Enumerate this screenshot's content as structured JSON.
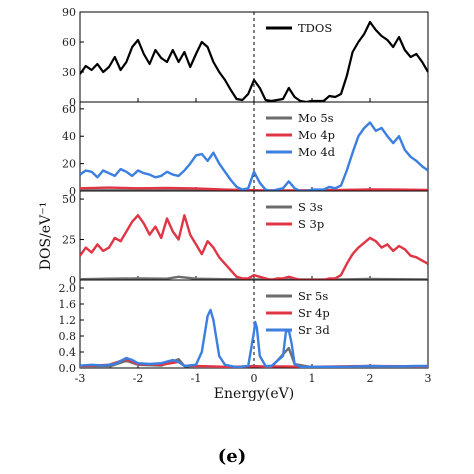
{
  "chart_data": {
    "type": "line",
    "xlabel": "Energy(eV)",
    "ylabel": "DOS/eV⁻¹",
    "xlim": [
      -3,
      3
    ],
    "xticks": [
      "-3",
      "-2",
      "-1",
      "0",
      "1",
      "2",
      "3"
    ],
    "fermi_line": "dashed vertical line at Energy = 0",
    "caption": "(e)",
    "panels": [
      {
        "ylim": [
          0,
          90
        ],
        "yticks": [
          "0",
          "30",
          "60",
          "90"
        ],
        "legend_position": "top-right",
        "series": [
          {
            "name": "TDOS",
            "color": "#000000",
            "x": [
              -3.0,
              -2.9,
              -2.8,
              -2.7,
              -2.6,
              -2.5,
              -2.4,
              -2.3,
              -2.2,
              -2.1,
              -2.0,
              -1.9,
              -1.8,
              -1.7,
              -1.6,
              -1.5,
              -1.4,
              -1.3,
              -1.2,
              -1.1,
              -1.0,
              -0.9,
              -0.8,
              -0.7,
              -0.6,
              -0.5,
              -0.4,
              -0.3,
              -0.2,
              -0.1,
              0.0,
              0.1,
              0.2,
              0.3,
              0.4,
              0.5,
              0.6,
              0.7,
              0.8,
              0.9,
              1.0,
              1.1,
              1.2,
              1.3,
              1.4,
              1.5,
              1.6,
              1.7,
              1.8,
              1.9,
              2.0,
              2.1,
              2.2,
              2.3,
              2.4,
              2.5,
              2.6,
              2.7,
              2.8,
              2.9,
              3.0
            ],
            "values": [
              28,
              36,
              32,
              38,
              30,
              35,
              45,
              32,
              40,
              55,
              62,
              48,
              38,
              52,
              44,
              40,
              52,
              40,
              50,
              35,
              48,
              60,
              55,
              40,
              30,
              22,
              12,
              3,
              2,
              8,
              22,
              14,
              2,
              1,
              2,
              3,
              14,
              5,
              1,
              0,
              1,
              1,
              1,
              6,
              5,
              8,
              26,
              50,
              60,
              68,
              80,
              72,
              66,
              62,
              55,
              65,
              52,
              45,
              48,
              40,
              30
            ]
          }
        ]
      },
      {
        "ylim": [
          0,
          65
        ],
        "yticks": [
          "0",
          "20",
          "40",
          "60"
        ],
        "legend_position": "top-right",
        "series": [
          {
            "name": "Mo 5s",
            "color": "#6d6d6d",
            "x": [
              -3.0,
              -2.0,
              -1.0,
              0.0,
              1.0,
              2.0,
              3.0
            ],
            "values": [
              0.5,
              0.5,
              0.4,
              0.3,
              0.2,
              0.6,
              0.5
            ]
          },
          {
            "name": "Mo 4p",
            "color": "#e03545",
            "x": [
              -3.0,
              -2.5,
              -2.0,
              -1.5,
              -1.0,
              -0.5,
              0.0,
              0.5,
              1.0,
              1.5,
              2.0,
              2.5,
              3.0
            ],
            "values": [
              2,
              2.5,
              2,
              2.2,
              1.8,
              1,
              0.5,
              0.4,
              0.5,
              0.7,
              1.2,
              1,
              0.8
            ]
          },
          {
            "name": "Mo 4d",
            "color": "#3b7fe0",
            "x": [
              -3.0,
              -2.9,
              -2.8,
              -2.7,
              -2.6,
              -2.5,
              -2.4,
              -2.3,
              -2.2,
              -2.1,
              -2.0,
              -1.9,
              -1.8,
              -1.7,
              -1.6,
              -1.5,
              -1.4,
              -1.3,
              -1.2,
              -1.1,
              -1.0,
              -0.9,
              -0.8,
              -0.7,
              -0.6,
              -0.5,
              -0.4,
              -0.3,
              -0.2,
              -0.1,
              0.0,
              0.1,
              0.2,
              0.3,
              0.4,
              0.5,
              0.6,
              0.7,
              0.8,
              0.9,
              1.0,
              1.1,
              1.2,
              1.3,
              1.4,
              1.5,
              1.6,
              1.7,
              1.8,
              1.9,
              2.0,
              2.1,
              2.2,
              2.3,
              2.4,
              2.5,
              2.6,
              2.7,
              2.8,
              2.9,
              3.0
            ],
            "values": [
              12,
              15,
              14,
              10,
              15,
              13,
              11,
              16,
              14,
              11,
              15,
              13,
              12,
              10,
              11,
              14,
              12,
              11,
              15,
              20,
              26,
              27,
              22,
              28,
              20,
              14,
              8,
              3,
              1,
              2,
              14,
              6,
              1,
              0,
              1,
              2,
              7,
              2,
              0,
              0,
              1,
              1,
              1,
              3,
              2,
              4,
              15,
              28,
              40,
              46,
              50,
              44,
              46,
              40,
              35,
              40,
              30,
              25,
              22,
              18,
              15
            ]
          }
        ]
      },
      {
        "ylim": [
          0,
          55
        ],
        "yticks": [
          "0",
          "25",
          "50"
        ],
        "legend_position": "top-right",
        "series": [
          {
            "name": "S 3s",
            "color": "#6d6d6d",
            "x": [
              -3.0,
              -2.5,
              -2.0,
              -1.5,
              -1.3,
              -1.0,
              -0.5,
              0.0,
              0.5,
              1.0,
              1.5,
              2.0,
              2.5,
              3.0
            ],
            "values": [
              0.5,
              0.8,
              1,
              0.8,
              2,
              0.8,
              0.5,
              0.3,
              0.4,
              0.3,
              0.3,
              0.6,
              0.5,
              0.4
            ]
          },
          {
            "name": "S 3p",
            "color": "#e03545",
            "x": [
              -3.0,
              -2.9,
              -2.8,
              -2.7,
              -2.6,
              -2.5,
              -2.4,
              -2.3,
              -2.2,
              -2.1,
              -2.0,
              -1.9,
              -1.8,
              -1.7,
              -1.6,
              -1.5,
              -1.4,
              -1.3,
              -1.2,
              -1.1,
              -1.0,
              -0.9,
              -0.8,
              -0.7,
              -0.6,
              -0.5,
              -0.4,
              -0.3,
              -0.2,
              -0.1,
              0.0,
              0.1,
              0.2,
              0.3,
              0.4,
              0.5,
              0.6,
              0.7,
              0.8,
              0.9,
              1.0,
              1.1,
              1.2,
              1.3,
              1.4,
              1.5,
              1.6,
              1.7,
              1.8,
              1.9,
              2.0,
              2.1,
              2.2,
              2.3,
              2.4,
              2.5,
              2.6,
              2.7,
              2.8,
              2.9,
              3.0
            ],
            "values": [
              15,
              20,
              17,
              22,
              18,
              20,
              26,
              24,
              30,
              36,
              40,
              35,
              28,
              33,
              26,
              38,
              30,
              25,
              40,
              28,
              22,
              16,
              24,
              20,
              14,
              10,
              6,
              2,
              1,
              1,
              3,
              2,
              1,
              0,
              1,
              1,
              2,
              1,
              0,
              0,
              0,
              0,
              0,
              1,
              1,
              3,
              10,
              16,
              20,
              23,
              26,
              24,
              20,
              22,
              18,
              21,
              19,
              15,
              14,
              12,
              10
            ]
          }
        ]
      },
      {
        "ylim": [
          0,
          2.2
        ],
        "yticks": [
          "0.0",
          "0.4",
          "0.8",
          "1.2",
          "1.6",
          "2.0"
        ],
        "legend_position": "top-right",
        "series": [
          {
            "name": "Sr 5s",
            "color": "#6d6d6d",
            "x": [
              -3.0,
              -2.5,
              -2.2,
              -2.0,
              -1.6,
              -1.3,
              -1.2,
              -1.0,
              -0.5,
              0.0,
              0.1,
              0.3,
              0.6,
              0.7,
              1.0,
              2.0,
              3.0
            ],
            "values": [
              0.02,
              0.03,
              0.18,
              0.08,
              0.06,
              0.22,
              0.05,
              0.02,
              0.01,
              0.05,
              0.04,
              0.02,
              0.5,
              0.1,
              0.02,
              0.02,
              0.02
            ]
          },
          {
            "name": "Sr 4p",
            "color": "#e03545",
            "x": [
              -3.0,
              -2.5,
              -2.2,
              -2.0,
              -1.6,
              -1.3,
              -1.2,
              -1.0,
              -0.5,
              0.0,
              0.5,
              1.0,
              2.0,
              3.0
            ],
            "values": [
              0.05,
              0.08,
              0.22,
              0.1,
              0.08,
              0.15,
              0.06,
              0.05,
              0.03,
              0.04,
              0.04,
              0.03,
              0.05,
              0.04
            ]
          },
          {
            "name": "Sr 3d",
            "color": "#3b7fe0",
            "x": [
              -3.0,
              -2.8,
              -2.6,
              -2.4,
              -2.2,
              -2.1,
              -2.0,
              -1.8,
              -1.6,
              -1.4,
              -1.3,
              -1.2,
              -1.0,
              -0.9,
              -0.8,
              -0.75,
              -0.7,
              -0.6,
              -0.5,
              -0.3,
              -0.1,
              0.0,
              0.02,
              0.05,
              0.1,
              0.2,
              0.3,
              0.5,
              0.55,
              0.6,
              0.65,
              0.7,
              0.8,
              1.0,
              1.5,
              1.8,
              2.0,
              2.4,
              2.8,
              3.0
            ],
            "values": [
              0.06,
              0.08,
              0.06,
              0.1,
              0.25,
              0.2,
              0.12,
              0.1,
              0.12,
              0.2,
              0.15,
              0.05,
              0.08,
              0.4,
              1.3,
              1.45,
              1.2,
              0.3,
              0.08,
              0.02,
              0.05,
              0.9,
              1.15,
              1.0,
              0.3,
              0.05,
              0.05,
              0.3,
              0.9,
              0.95,
              0.6,
              0.1,
              0.03,
              0.03,
              0.03,
              0.04,
              0.05,
              0.04,
              0.05,
              0.05
            ]
          }
        ]
      }
    ]
  }
}
